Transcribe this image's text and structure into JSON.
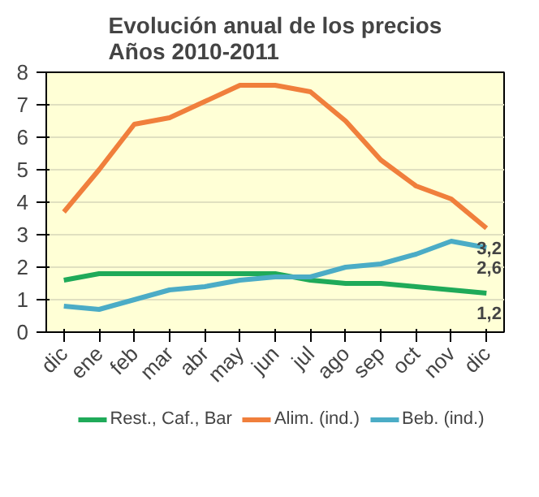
{
  "chart_data": {
    "type": "line",
    "title": "Evolución anual de los precios\nAños 2010-2011",
    "categories": [
      "dic",
      "ene",
      "feb",
      "mar",
      "abr",
      "may",
      "jun",
      "jul",
      "ago",
      "sep",
      "oct",
      "nov",
      "dic"
    ],
    "series": [
      {
        "name": "Rest., Caf., Bar",
        "color": "#1faa59",
        "values": [
          1.6,
          1.8,
          1.8,
          1.8,
          1.8,
          1.8,
          1.8,
          1.6,
          1.5,
          1.5,
          1.4,
          1.3,
          1.2
        ],
        "value_labels": [
          null,
          null,
          null,
          null,
          null,
          null,
          null,
          null,
          null,
          null,
          null,
          null,
          "1,2"
        ]
      },
      {
        "name": "Alim. (ind.)",
        "color": "#f07f3c",
        "values": [
          3.7,
          5.0,
          6.4,
          6.6,
          7.1,
          7.6,
          7.6,
          7.4,
          6.5,
          5.3,
          4.5,
          4.1,
          3.2
        ],
        "value_labels": [
          null,
          null,
          null,
          null,
          null,
          null,
          null,
          null,
          null,
          null,
          null,
          null,
          "3,2"
        ]
      },
      {
        "name": "Beb. (ind.)",
        "color": "#4bacc6",
        "values": [
          0.8,
          0.7,
          1.0,
          1.3,
          1.4,
          1.6,
          1.7,
          1.7,
          2.0,
          2.1,
          2.4,
          2.8,
          2.6
        ],
        "value_labels": [
          null,
          null,
          null,
          null,
          null,
          null,
          null,
          null,
          null,
          null,
          null,
          null,
          "2,6"
        ]
      }
    ],
    "ylim": [
      0,
      8
    ],
    "yticks": [
      0,
      1,
      2,
      3,
      4,
      5,
      6,
      7,
      8
    ],
    "grid": "y",
    "legend": "bottom",
    "marker": "none",
    "line_style": "solid"
  }
}
